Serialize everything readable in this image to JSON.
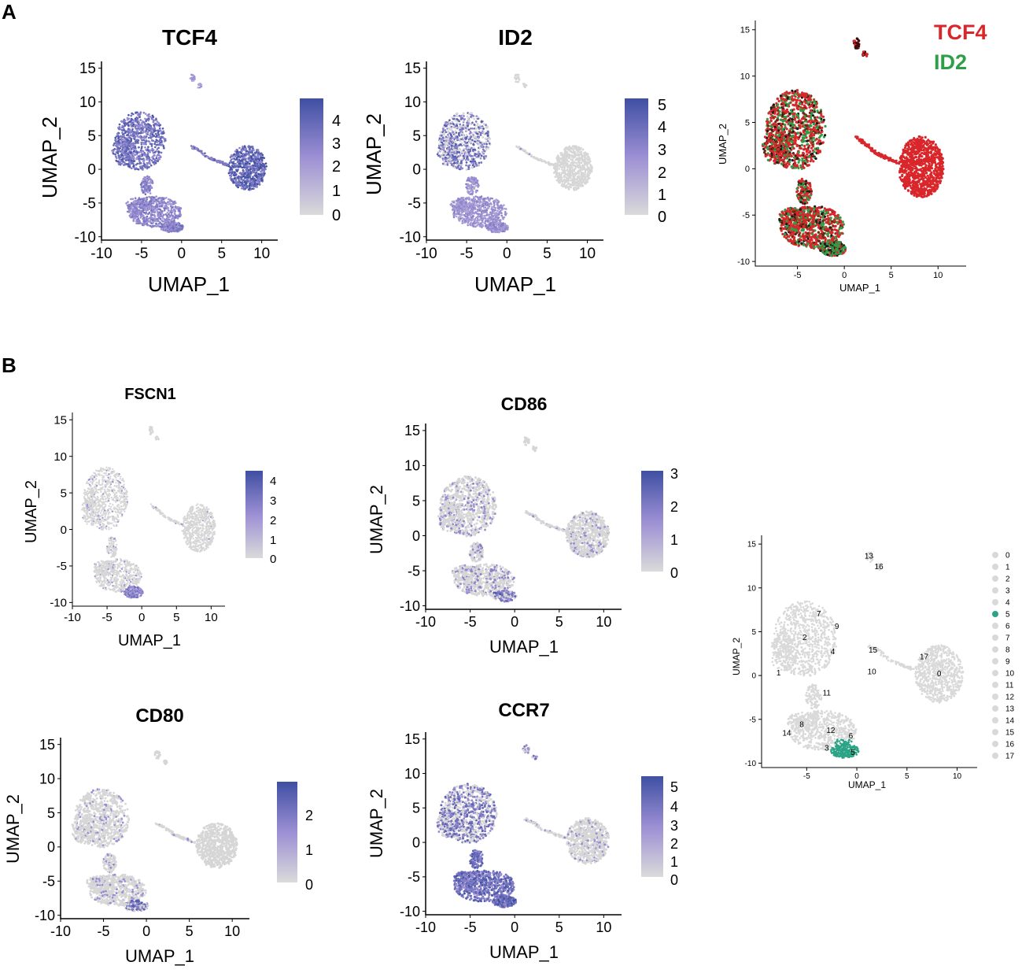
{
  "figure": {
    "panel_labels": [
      "A",
      "B"
    ],
    "colors": {
      "low": "#d6d6d6",
      "high": "#3f4fa3",
      "mid": "#7d6ec6",
      "tcf4": "#d9262a",
      "id2": "#2e9e47",
      "cluster_highlight": "#2aa386"
    }
  },
  "chart_data": [
    {
      "id": "tcf4",
      "type": "scatter",
      "title": "TCF4",
      "xlabel": "UMAP_1",
      "ylabel": "UMAP_2",
      "xlim": [
        -10,
        12
      ],
      "ylim": [
        -10.5,
        16
      ],
      "xticks": [
        -10,
        -5,
        0,
        5,
        10
      ],
      "yticks": [
        15,
        10,
        5,
        0,
        -5,
        -10
      ],
      "colorbar": {
        "ticks": [
          4,
          3,
          2,
          1,
          0
        ],
        "max": 4.4
      },
      "intensity": {
        "upper_left": 0.85,
        "lower_left": 0.65,
        "right_cluster": 0.95,
        "arm": 0.8,
        "top_islands": 0.5,
        "tail_tip": 0.7
      }
    },
    {
      "id": "id2",
      "type": "scatter",
      "title": "ID2",
      "xlabel": "UMAP_1",
      "ylabel": "UMAP_2",
      "xlim": [
        -10,
        12
      ],
      "ylim": [
        -10.5,
        16
      ],
      "xticks": [
        -10,
        -5,
        0,
        5,
        10
      ],
      "yticks": [
        15,
        10,
        5,
        0,
        -5,
        -10
      ],
      "colorbar": {
        "ticks": [
          5,
          4,
          3,
          2,
          1,
          0
        ],
        "max": 5
      },
      "intensity": {
        "upper_left": 0.45,
        "lower_left": 0.55,
        "right_cluster": 0.0,
        "arm": 0.05,
        "top_islands": 0.0,
        "tail_tip": 0.6
      }
    },
    {
      "id": "overlay",
      "type": "scatter",
      "title": "",
      "xlabel": "UMAP_1",
      "ylabel": "UMAP_2",
      "xlim": [
        -9.5,
        13
      ],
      "ylim": [
        -10.5,
        16
      ],
      "xticks": [
        -5,
        0,
        5,
        10
      ],
      "yticks": [
        15,
        10,
        5,
        0,
        -5,
        -10
      ],
      "legend": [
        "TCF4",
        "ID2"
      ]
    },
    {
      "id": "fscn1",
      "type": "scatter",
      "title": "FSCN1",
      "xlabel": "UMAP_1",
      "ylabel": "UMAP_2",
      "xlim": [
        -10,
        12
      ],
      "ylim": [
        -10.5,
        16
      ],
      "xticks": [
        -10,
        -5,
        0,
        5,
        10
      ],
      "yticks": [
        15,
        10,
        5,
        0,
        -5,
        -10
      ],
      "colorbar": {
        "ticks": [
          4,
          3,
          2,
          1,
          0
        ],
        "max": 4.4
      },
      "intensity": {
        "upper_left": 0.06,
        "lower_left": 0.06,
        "right_cluster": 0.01,
        "arm": 0.08,
        "top_islands": 0.0,
        "tail_tip": 0.7
      }
    },
    {
      "id": "cd86",
      "type": "scatter",
      "title": "CD86",
      "xlabel": "UMAP_1",
      "ylabel": "UMAP_2",
      "xlim": [
        -10,
        12
      ],
      "ylim": [
        -10.5,
        16
      ],
      "xticks": [
        -10,
        -5,
        0,
        5,
        10
      ],
      "yticks": [
        15,
        10,
        5,
        0,
        -5,
        -10
      ],
      "colorbar": {
        "ticks": [
          3,
          2,
          1,
          0
        ],
        "max": 3.1
      },
      "intensity": {
        "upper_left": 0.15,
        "lower_left": 0.18,
        "right_cluster": 0.1,
        "arm": 0.1,
        "top_islands": 0.0,
        "tail_tip": 0.45
      }
    },
    {
      "id": "cd80",
      "type": "scatter",
      "title": "CD80",
      "xlabel": "UMAP_1",
      "ylabel": "UMAP_2",
      "xlim": [
        -10,
        12
      ],
      "ylim": [
        -10.5,
        16
      ],
      "xticks": [
        -10,
        -5,
        0,
        5,
        10
      ],
      "yticks": [
        15,
        10,
        5,
        0,
        -5,
        -10
      ],
      "colorbar": {
        "ticks": [
          2,
          1,
          0
        ],
        "max": 2.8
      },
      "intensity": {
        "upper_left": 0.08,
        "lower_left": 0.1,
        "right_cluster": 0.0,
        "arm": 0.06,
        "top_islands": 0.0,
        "tail_tip": 0.45
      }
    },
    {
      "id": "ccr7",
      "type": "scatter",
      "title": "CCR7",
      "xlabel": "UMAP_1",
      "ylabel": "UMAP_2",
      "xlim": [
        -10,
        12
      ],
      "ylim": [
        -10.5,
        16
      ],
      "xticks": [
        -10,
        -5,
        0,
        5,
        10
      ],
      "yticks": [
        15,
        10,
        5,
        0,
        -5,
        -10
      ],
      "colorbar": {
        "ticks": [
          5,
          4,
          3,
          2,
          1,
          0
        ],
        "max": 5.3
      },
      "intensity": {
        "upper_left": 0.4,
        "lower_left": 0.85,
        "right_cluster": 0.08,
        "arm": 0.1,
        "top_islands": 0.4,
        "tail_tip": 0.9
      }
    },
    {
      "id": "clusters",
      "type": "scatter",
      "title": "",
      "xlabel": "UMAP_1",
      "ylabel": "UMAP_2",
      "xlim": [
        -9.5,
        12
      ],
      "ylim": [
        -10.5,
        16
      ],
      "xticks": [
        -5,
        0,
        5,
        10
      ],
      "yticks": [
        15,
        10,
        5,
        0,
        -5,
        -10
      ],
      "highlighted_cluster": "5",
      "legend": [
        "0",
        "1",
        "2",
        "3",
        "4",
        "5",
        "6",
        "7",
        "8",
        "9",
        "10",
        "11",
        "12",
        "13",
        "14",
        "15",
        "16",
        "17"
      ],
      "cluster_labels": [
        {
          "label": "0",
          "x": 8.2,
          "y": 0.2
        },
        {
          "label": "1",
          "x": -7.8,
          "y": 0.3
        },
        {
          "label": "2",
          "x": -5.2,
          "y": 4.3
        },
        {
          "label": "3",
          "x": -3.0,
          "y": -8.3
        },
        {
          "label": "4",
          "x": -2.4,
          "y": 2.7
        },
        {
          "label": "5",
          "x": -0.4,
          "y": -8.8
        },
        {
          "label": "6",
          "x": -0.6,
          "y": -6.9
        },
        {
          "label": "7",
          "x": -3.8,
          "y": 7.0
        },
        {
          "label": "8",
          "x": -5.5,
          "y": -5.6
        },
        {
          "label": "9",
          "x": -2.0,
          "y": 5.6
        },
        {
          "label": "10",
          "x": 1.5,
          "y": 0.4
        },
        {
          "label": "11",
          "x": -3.0,
          "y": -2.0
        },
        {
          "label": "12",
          "x": -2.6,
          "y": -6.3
        },
        {
          "label": "13",
          "x": 1.2,
          "y": 13.6
        },
        {
          "label": "14",
          "x": -7.0,
          "y": -6.6
        },
        {
          "label": "15",
          "x": 1.6,
          "y": 2.9
        },
        {
          "label": "16",
          "x": 2.2,
          "y": 12.4
        },
        {
          "label": "17",
          "x": 6.7,
          "y": 2.1
        }
      ]
    }
  ]
}
